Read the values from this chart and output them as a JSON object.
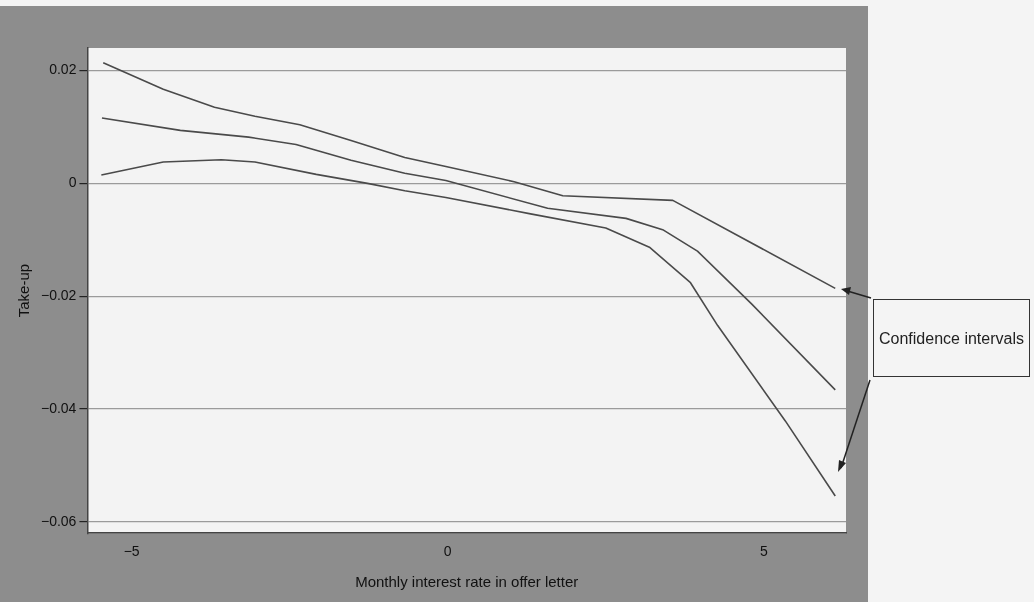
{
  "chart_data": {
    "type": "line",
    "xlabel": "Monthly interest rate in offer letter",
    "ylabel": "Take-up",
    "xlim": [
      -5.7,
      6.3
    ],
    "xticks": [
      {
        "value": -5,
        "label": "−5"
      },
      0,
      5
    ],
    "ylim": [
      -0.062,
      0.024
    ],
    "yticks": [
      {
        "value": -0.06,
        "label": "−0.06"
      },
      {
        "value": -0.04,
        "label": "−0.04"
      },
      {
        "value": -0.02,
        "label": "−0.02"
      },
      0,
      0.02
    ],
    "grid": "y",
    "legend": false,
    "marker": "none",
    "line_style": "solid",
    "annotations": [
      "Confidence intervals"
    ],
    "series": [
      {
        "color": "#4a4a4a",
        "x": [
          -5.45,
          -4.5,
          -3.69,
          -3.05,
          -2.34,
          -1.53,
          -0.68,
          -0.03,
          1.05,
          1.82,
          3.56,
          6.13
        ],
        "values": [
          0.0214,
          0.0167,
          0.0135,
          0.0119,
          0.0104,
          0.0076,
          0.0046,
          0.003,
          0.0003,
          -0.0022,
          -0.003,
          -0.0186
        ]
      },
      {
        "color": "#4a4a4a",
        "x": [
          -5.47,
          -4.23,
          -3.15,
          -2.4,
          -1.53,
          -0.68,
          -0.03,
          1.58,
          2.82,
          3.4,
          3.95,
          4.81,
          6.13
        ],
        "values": [
          0.0116,
          0.0094,
          0.0082,
          0.0069,
          0.0041,
          0.0018,
          0.0005,
          -0.0044,
          -0.0062,
          -0.0082,
          -0.012,
          -0.0214,
          -0.0366
        ]
      },
      {
        "color": "#4a4a4a",
        "x": [
          -5.48,
          -4.5,
          -3.58,
          -3.05,
          -2.08,
          -1.27,
          -0.68,
          -0.03,
          1.31,
          2.5,
          3.19,
          3.84,
          4.27,
          5.34,
          6.13
        ],
        "values": [
          0.0015,
          0.0038,
          0.0042,
          0.0038,
          0.0016,
          0,
          -0.0013,
          -0.0025,
          -0.0054,
          -0.0079,
          -0.0113,
          -0.0176,
          -0.0252,
          -0.0421,
          -0.0554
        ]
      }
    ]
  }
}
